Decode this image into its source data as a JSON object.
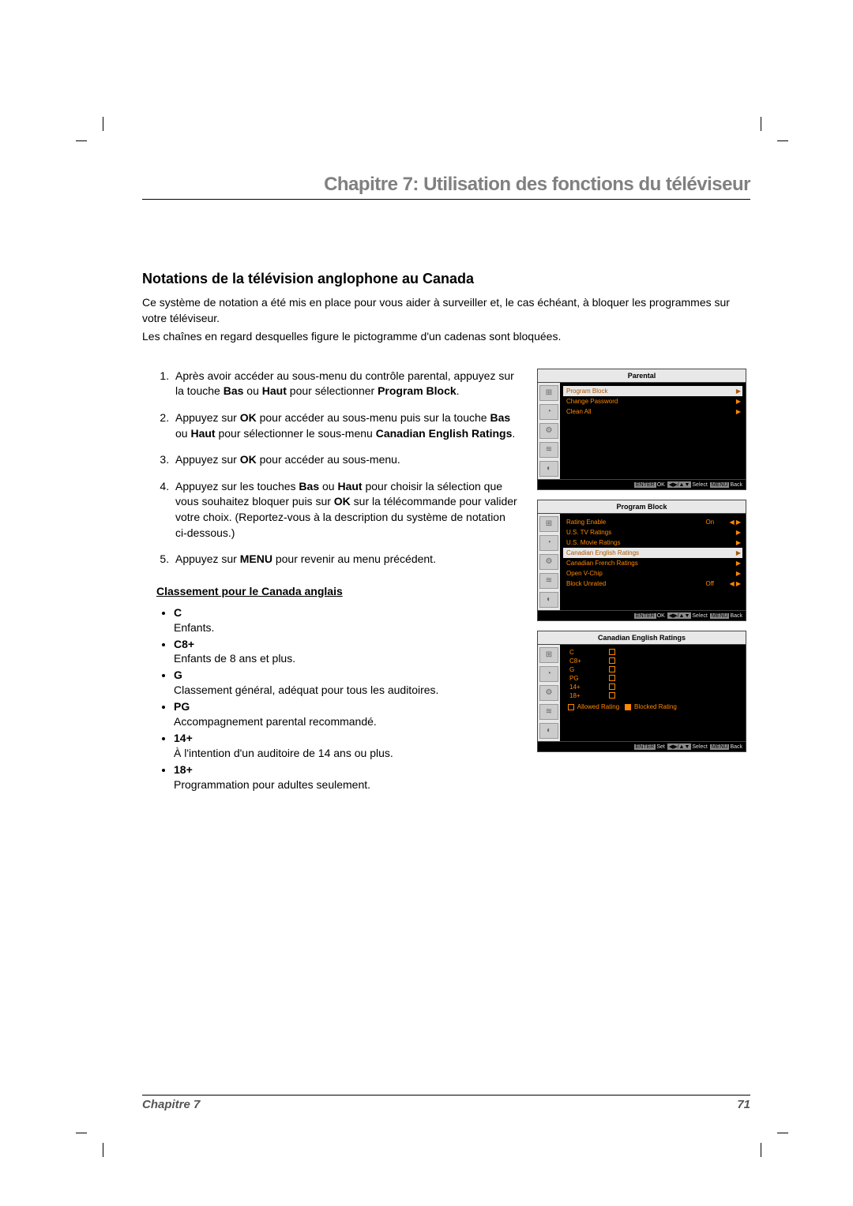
{
  "header": {
    "chapter_title": "Chapitre 7: Utilisation des fonctions du téléviseur"
  },
  "section": {
    "title": "Notations de la télévision anglophone au Canada",
    "intro1": "Ce système de notation a été mis en place pour vous aider à surveiller et, le cas échéant, à bloquer les programmes sur votre téléviseur.",
    "intro2": "Les chaînes en regard desquelles figure le pictogramme d'un cadenas sont bloquées."
  },
  "steps": {
    "s1a": "Après avoir accéder au sous-menu du contrôle parental, appuyez sur la touche ",
    "s1b": " ou ",
    "s1c": " pour sélectionner ",
    "s1_bas": "Bas",
    "s1_haut": "Haut",
    "s1_pb": "Program Block",
    "s1d": ".",
    "s2a": "Appuyez sur ",
    "s2_ok": "OK",
    "s2b": " pour accéder au sous-menu puis sur la touche ",
    "s2_bas": "Bas",
    "s2c": " ou ",
    "s2_haut": "Haut",
    "s2d": " pour sélectionner le sous-menu ",
    "s2_cer": "Canadian English Ratings",
    "s2e": ".",
    "s3a": "Appuyez sur ",
    "s3_ok": "OK",
    "s3b": " pour accéder au sous-menu.",
    "s4a": "Appuyez sur les touches ",
    "s4_bas": "Bas",
    "s4b": " ou ",
    "s4_haut": "Haut",
    "s4c": " pour choisir la sélection que vous souhaitez bloquer puis sur ",
    "s4_ok": "OK",
    "s4d": " sur la télécommande pour valider votre choix. (Reportez-vous à la description du système de notation ci-dessous.)",
    "s5a": "Appuyez sur ",
    "s5_menu": "MENU",
    "s5b": " pour revenir au menu précédent."
  },
  "ratings_heading": "Classement pour le Canada anglais",
  "ratings": [
    {
      "code": "C",
      "desc": "Enfants."
    },
    {
      "code": "C8+",
      "desc": "Enfants de 8 ans et plus."
    },
    {
      "code": "G",
      "desc": "Classement général, adéquat pour tous les auditoires."
    },
    {
      "code": "PG",
      "desc": "Accompagnement parental recommandé."
    },
    {
      "code": "14+",
      "desc": "À l'intention d'un auditoire de 14 ans ou plus."
    },
    {
      "code": "18+",
      "desc": "Programmation pour adultes seulement."
    }
  ],
  "tv": {
    "panel1": {
      "title": "Parental",
      "rows": [
        {
          "label": "Program Block",
          "hl": true,
          "arrow": "▶"
        },
        {
          "label": "Change Password",
          "arrow": "▶"
        },
        {
          "label": "Clean All",
          "arrow": "▶"
        }
      ],
      "footer": {
        "enter": "ENTER",
        "ok": "OK",
        "nav": "◀▶/▲▼",
        "select": "Select",
        "menu": "MENU",
        "back": "Back"
      }
    },
    "panel2": {
      "title": "Program Block",
      "rows": [
        {
          "label": "Rating Enable",
          "val": "On",
          "arrow": "◀ ▶"
        },
        {
          "label": "U.S. TV Ratings",
          "arrow": "▶"
        },
        {
          "label": "U.S. Movie Ratings",
          "arrow": "▶"
        },
        {
          "label": "Canadian English Ratings",
          "hl": true,
          "arrow": "▶"
        },
        {
          "label": "Canadian French Ratings",
          "arrow": "▶"
        },
        {
          "label": "Open V-Chip",
          "arrow": "▶"
        },
        {
          "label": "Block Unrated",
          "val": "Off",
          "arrow": "◀ ▶"
        }
      ],
      "footer": {
        "enter": "ENTER",
        "ok": "OK",
        "nav": "◀▶/▲▼",
        "select": "Select",
        "menu": "MENU",
        "back": "Back"
      }
    },
    "panel3": {
      "title": "Canadian English Ratings",
      "ratings": [
        "C",
        "C8+",
        "G",
        "PG",
        "14+",
        "18+"
      ],
      "legend_allowed": "Allowed Rating",
      "legend_blocked": "Blocked Rating",
      "footer": {
        "enter": "ENTER",
        "set": "Set",
        "nav": "◀▶/▲▼",
        "select": "Select",
        "menu": "MENU",
        "back": "Back"
      }
    },
    "icons": [
      "⊞",
      "◔",
      "⚙",
      "≋",
      "◐"
    ]
  },
  "footer": {
    "chapter": "Chapitre 7",
    "page": "71"
  },
  "colors": {
    "heading_gray": "#808080",
    "tv_orange": "#ff8800",
    "tv_bg": "#000000",
    "tv_sidebar": "#e8e8e8"
  }
}
